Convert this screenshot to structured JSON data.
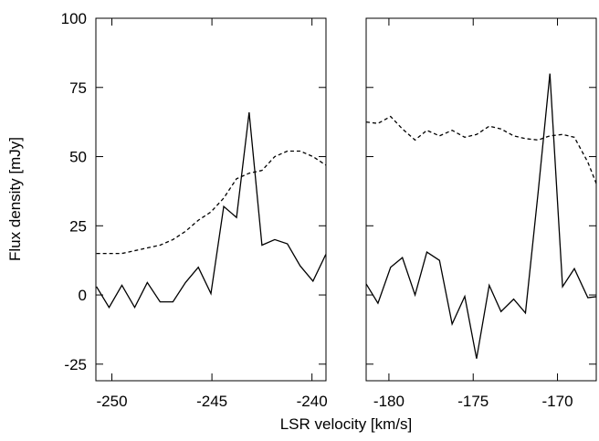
{
  "chart_data": [
    {
      "type": "line",
      "xlabel": "LSR velocity [km/s]",
      "ylabel": "Flux density [mJy]",
      "x": [
        -250.77,
        -250.14,
        -249.5,
        -248.86,
        -248.23,
        -247.59,
        -246.95,
        -246.32,
        -245.68,
        -245.05,
        -244.41,
        -243.77,
        -243.14,
        -242.5,
        -241.86,
        -241.23,
        -240.59,
        -239.95,
        -239.32,
        -238.68
      ],
      "series": [
        {
          "color": "#000000",
          "dash": "solid",
          "values": [
            3,
            -4.5,
            3.5,
            -4.5,
            4.5,
            -2.5,
            -2.5,
            4.5,
            10,
            0.5,
            32,
            28,
            66,
            18,
            20,
            18.5,
            10.5,
            5,
            14.5,
            13
          ]
        },
        {
          "color": "#000000",
          "dash": "dashed",
          "values": [
            15,
            15,
            15,
            16,
            17,
            18,
            20,
            23,
            27,
            30,
            35,
            42,
            44,
            45,
            50,
            52,
            52,
            50,
            47,
            50
          ]
        }
      ],
      "xlim": [
        -250.8,
        -239.3
      ],
      "xticks": [
        -250,
        -245,
        -240
      ],
      "ylim": [
        -31,
        100
      ],
      "yticks": [
        -25,
        0,
        25,
        50,
        75,
        100
      ],
      "ytick_labels": true
    },
    {
      "type": "line",
      "x": [
        -181.35,
        -180.65,
        -179.9,
        -179.2,
        -178.45,
        -177.75,
        -177.0,
        -176.25,
        -175.5,
        -174.8,
        -174.05,
        -173.35,
        -172.6,
        -171.9,
        -171.15,
        -170.45,
        -169.7,
        -169.0,
        -168.2,
        -167.55
      ],
      "series": [
        {
          "color": "#000000",
          "dash": "solid",
          "values": [
            4,
            -3,
            10,
            13.5,
            0,
            15.5,
            12.5,
            -10.5,
            -0.5,
            -23,
            3.5,
            -6,
            -1.5,
            -6.5,
            37,
            80,
            3,
            9.5,
            -1,
            -0.5
          ]
        },
        {
          "color": "#000000",
          "dash": "dashed",
          "values": [
            62.5,
            62,
            64.5,
            60,
            56,
            59.5,
            57.5,
            59.5,
            57,
            58,
            61,
            60,
            57.5,
            56.5,
            56,
            57.5,
            58,
            57,
            48,
            38
          ]
        }
      ],
      "xlim": [
        -181.35,
        -167.7
      ],
      "xticks": [
        -180,
        -175,
        -170
      ],
      "ylim": [
        -31,
        100
      ],
      "yticks": [
        -25,
        0,
        25,
        50,
        75,
        100
      ],
      "ytick_labels": false
    }
  ]
}
